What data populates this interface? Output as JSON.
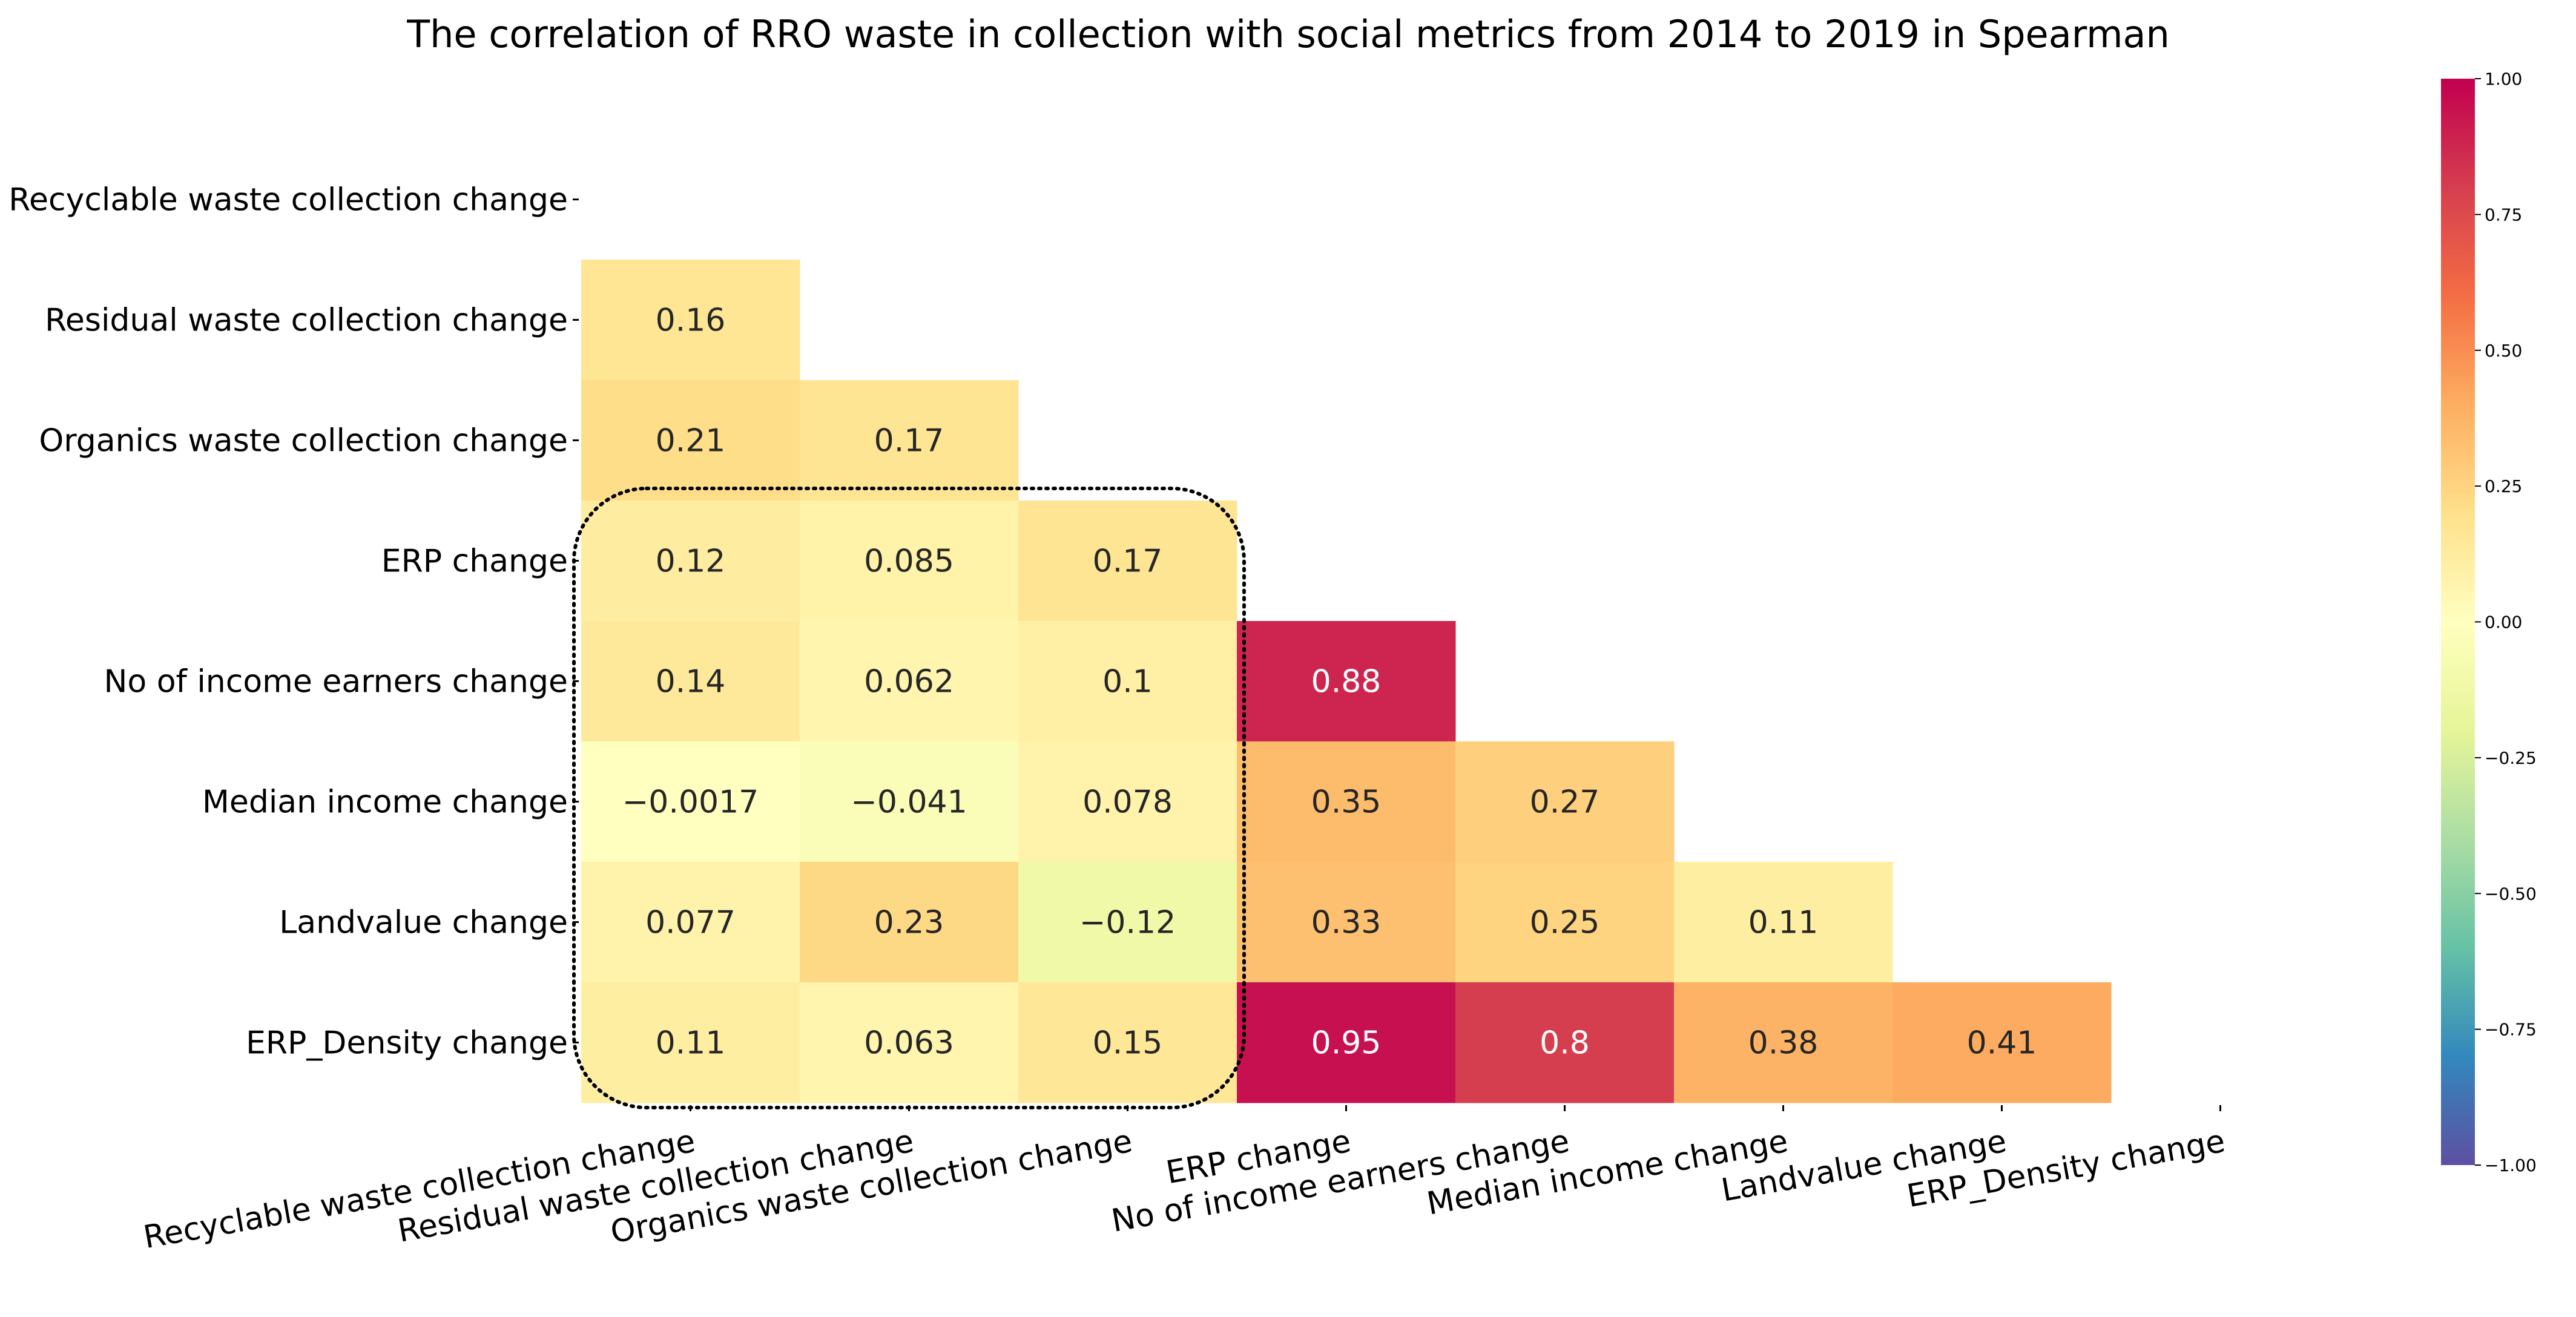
{
  "chart_data": {
    "type": "heatmap",
    "title": "The correlation of RRO waste in collection with social metrics from 2014 to 2019 in Spearman",
    "row_labels": [
      "Recyclable waste collection change",
      "Residual  waste collection change",
      "Organics waste collection change",
      "ERP change",
      "No of income earners change",
      "Median income change",
      "Landvalue change",
      "ERP_Density change"
    ],
    "col_labels": [
      "Recyclable waste collection change",
      "Residual  waste collection change",
      "Organics waste collection change",
      "ERP change",
      "No of income earners change",
      "Median income change",
      "Landvalue change",
      "ERP_Density change"
    ],
    "mask": "upper triangle including diagonal",
    "cells": [
      {
        "row": 1,
        "col": 0,
        "value": 0.16,
        "label": "0.16"
      },
      {
        "row": 2,
        "col": 0,
        "value": 0.21,
        "label": "0.21"
      },
      {
        "row": 2,
        "col": 1,
        "value": 0.17,
        "label": "0.17"
      },
      {
        "row": 3,
        "col": 0,
        "value": 0.12,
        "label": "0.12"
      },
      {
        "row": 3,
        "col": 1,
        "value": 0.085,
        "label": "0.085"
      },
      {
        "row": 3,
        "col": 2,
        "value": 0.17,
        "label": "0.17"
      },
      {
        "row": 4,
        "col": 0,
        "value": 0.14,
        "label": "0.14"
      },
      {
        "row": 4,
        "col": 1,
        "value": 0.062,
        "label": "0.062"
      },
      {
        "row": 4,
        "col": 2,
        "value": 0.1,
        "label": "0.1"
      },
      {
        "row": 4,
        "col": 3,
        "value": 0.88,
        "label": "0.88"
      },
      {
        "row": 5,
        "col": 0,
        "value": -0.0017,
        "label": "−0.0017"
      },
      {
        "row": 5,
        "col": 1,
        "value": -0.041,
        "label": "−0.041"
      },
      {
        "row": 5,
        "col": 2,
        "value": 0.078,
        "label": "0.078"
      },
      {
        "row": 5,
        "col": 3,
        "value": 0.35,
        "label": "0.35"
      },
      {
        "row": 5,
        "col": 4,
        "value": 0.27,
        "label": "0.27"
      },
      {
        "row": 6,
        "col": 0,
        "value": 0.077,
        "label": "0.077"
      },
      {
        "row": 6,
        "col": 1,
        "value": 0.23,
        "label": "0.23"
      },
      {
        "row": 6,
        "col": 2,
        "value": -0.12,
        "label": "−0.12"
      },
      {
        "row": 6,
        "col": 3,
        "value": 0.33,
        "label": "0.33"
      },
      {
        "row": 6,
        "col": 4,
        "value": 0.25,
        "label": "0.25"
      },
      {
        "row": 6,
        "col": 5,
        "value": 0.11,
        "label": "0.11"
      },
      {
        "row": 7,
        "col": 0,
        "value": 0.11,
        "label": "0.11"
      },
      {
        "row": 7,
        "col": 1,
        "value": 0.063,
        "label": "0.063"
      },
      {
        "row": 7,
        "col": 2,
        "value": 0.15,
        "label": "0.15"
      },
      {
        "row": 7,
        "col": 3,
        "value": 0.95,
        "label": "0.95"
      },
      {
        "row": 7,
        "col": 4,
        "value": 0.8,
        "label": "0.8"
      },
      {
        "row": 7,
        "col": 5,
        "value": 0.38,
        "label": "0.38"
      },
      {
        "row": 7,
        "col": 6,
        "value": 0.41,
        "label": "0.41"
      }
    ],
    "vmin": -1.0,
    "vmax": 1.0,
    "colormap": "Spectral_r",
    "colormap_stops": [
      {
        "v": -1.0,
        "color": "#5e4fa2"
      },
      {
        "v": -0.8,
        "color": "#3288bd"
      },
      {
        "v": -0.6,
        "color": "#66c2a5"
      },
      {
        "v": -0.4,
        "color": "#abdda4"
      },
      {
        "v": -0.2,
        "color": "#e6f598"
      },
      {
        "v": 0.0,
        "color": "#ffffbf"
      },
      {
        "v": 0.2,
        "color": "#fee08b"
      },
      {
        "v": 0.4,
        "color": "#fdae61"
      },
      {
        "v": 0.6,
        "color": "#f46d43"
      },
      {
        "v": 0.8,
        "color": "#d53e4f"
      },
      {
        "v": 1.0,
        "color": "#c2004f"
      }
    ],
    "colorbar_ticks": [
      {
        "value": 1.0,
        "label": "1.00"
      },
      {
        "value": 0.75,
        "label": "0.75"
      },
      {
        "value": 0.5,
        "label": "0.50"
      },
      {
        "value": 0.25,
        "label": "0.25"
      },
      {
        "value": 0.0,
        "label": "0.00"
      },
      {
        "value": -0.25,
        "label": "−0.25"
      },
      {
        "value": -0.5,
        "label": "−0.50"
      },
      {
        "value": -0.75,
        "label": "−0.75"
      },
      {
        "value": -1.0,
        "label": "−1.00"
      }
    ],
    "highlight": {
      "style": "dotted rounded rectangle",
      "rows": [
        3,
        7
      ],
      "cols": [
        0,
        2
      ]
    },
    "text_color_dark": "#262626",
    "text_color_light": "#ffffff"
  }
}
